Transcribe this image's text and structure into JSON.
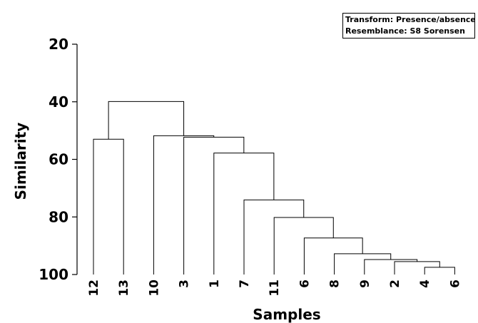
{
  "chart_data": {
    "type": "dendrogram",
    "xlabel": "Samples",
    "ylabel": "Similarity",
    "ylim": [
      20,
      100
    ],
    "y_ticks": [
      20,
      40,
      60,
      80,
      100
    ],
    "y_tick_labels": [
      "20",
      "40",
      "60",
      "80",
      "100"
    ],
    "leaves": [
      "12",
      "13",
      "10",
      "3",
      "1",
      "7",
      "11",
      "6",
      "8",
      "9",
      "2",
      "4",
      "6"
    ],
    "merges": [
      {
        "children": [
          "L11",
          "L12"
        ],
        "similarity": 97.5
      },
      {
        "children": [
          "L10",
          "M0"
        ],
        "similarity": 95.5
      },
      {
        "children": [
          "L9",
          "M1"
        ],
        "similarity": 94.8
      },
      {
        "children": [
          "L8",
          "M2"
        ],
        "similarity": 92.8
      },
      {
        "children": [
          "L7",
          "M3"
        ],
        "similarity": 87.3
      },
      {
        "children": [
          "L6",
          "M4"
        ],
        "similarity": 80.2
      },
      {
        "children": [
          "L5",
          "M5"
        ],
        "similarity": 74.1
      },
      {
        "children": [
          "L4",
          "M6"
        ],
        "similarity": 57.8
      },
      {
        "children": [
          "L3",
          "M7"
        ],
        "similarity": 52.3
      },
      {
        "children": [
          "L2",
          "M8"
        ],
        "similarity": 51.8
      },
      {
        "children": [
          "L0",
          "L1"
        ],
        "similarity": 53.0
      },
      {
        "children": [
          "M10",
          "M9"
        ],
        "similarity": 39.9
      }
    ],
    "annotations": [
      "Transform: Presence/absence",
      "Resemblance: S8 Sorensen"
    ]
  }
}
